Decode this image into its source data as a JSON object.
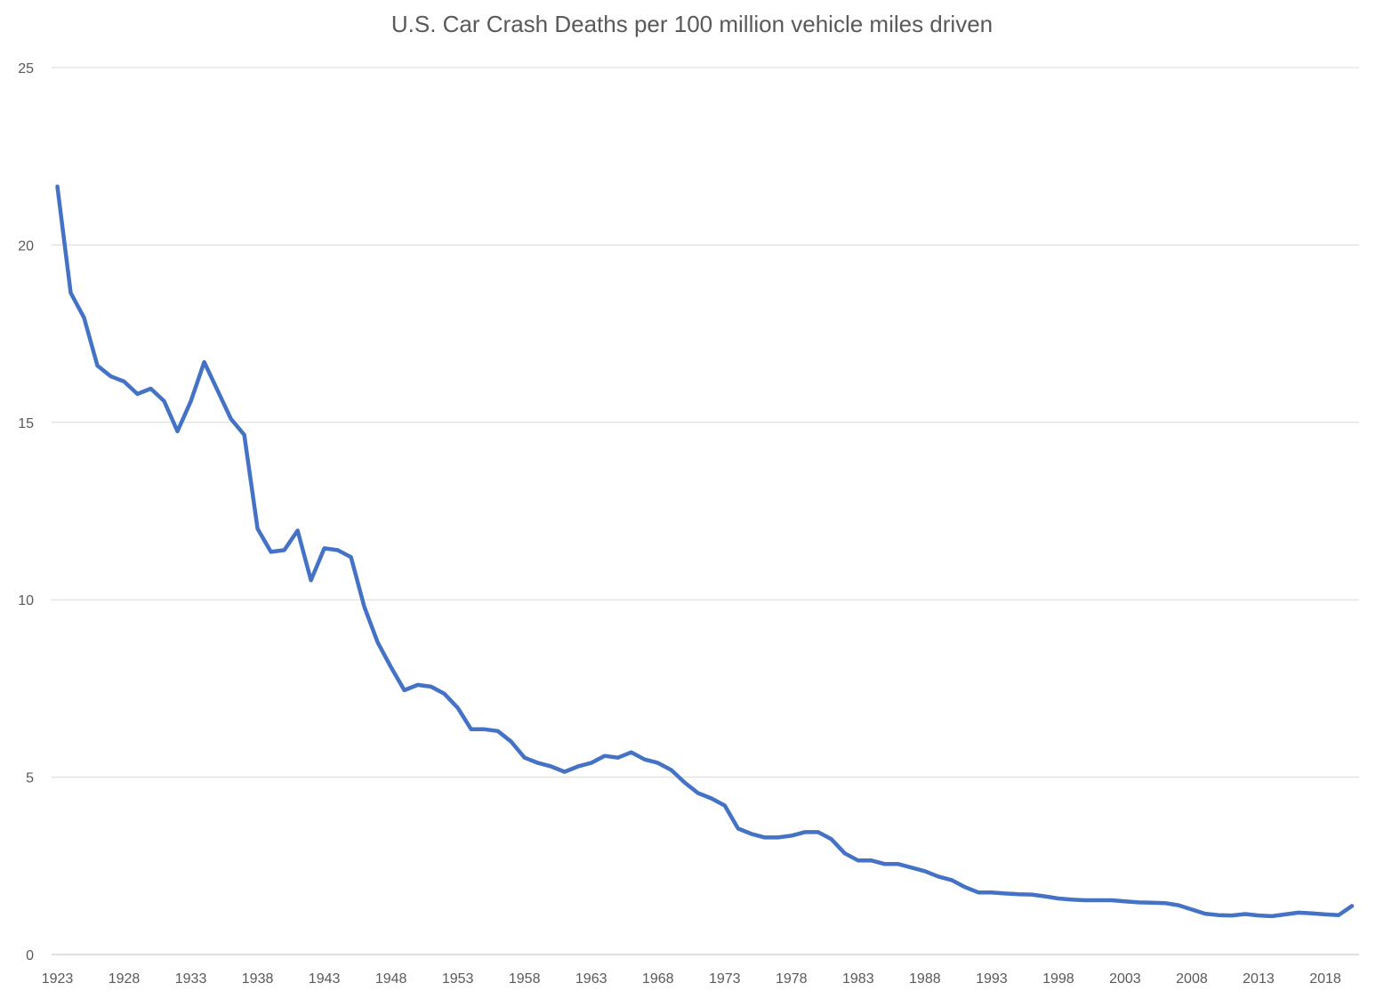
{
  "chart_data": {
    "type": "line",
    "title": "U.S. Car Crash Deaths per 100 million vehicle miles driven",
    "xlabel": "",
    "ylabel": "",
    "ylim": [
      0,
      25
    ],
    "yticks": [
      0,
      5,
      10,
      15,
      20,
      25
    ],
    "xlim": [
      1923,
      2020
    ],
    "xtick_labels": [
      "1923",
      "1928",
      "1933",
      "1938",
      "1943",
      "1948",
      "1953",
      "1958",
      "1963",
      "1968",
      "1973",
      "1978",
      "1983",
      "1988",
      "1993",
      "1998",
      "2003",
      "2008",
      "2013",
      "2018"
    ],
    "grid": "horizontal",
    "legend": "none",
    "color": "#4472C4",
    "series": [
      {
        "x": [
          1923,
          1924,
          1925,
          1926,
          1927,
          1928,
          1929,
          1930,
          1931,
          1932,
          1933,
          1934,
          1935,
          1936,
          1937,
          1938,
          1939,
          1940,
          1941,
          1942,
          1943,
          1944,
          1945,
          1946,
          1947,
          1948,
          1949,
          1950,
          1951,
          1952,
          1953,
          1954,
          1955,
          1956,
          1957,
          1958,
          1959,
          1960,
          1961,
          1962,
          1963,
          1964,
          1965,
          1966,
          1967,
          1968,
          1969,
          1970,
          1971,
          1972,
          1973,
          1974,
          1975,
          1976,
          1977,
          1978,
          1979,
          1980,
          1981,
          1982,
          1983,
          1984,
          1985,
          1986,
          1987,
          1988,
          1989,
          1990,
          1991,
          1992,
          1993,
          1994,
          1995,
          1996,
          1997,
          1998,
          1999,
          2000,
          2001,
          2002,
          2003,
          2004,
          2005,
          2006,
          2007,
          2008,
          2009,
          2010,
          2011,
          2012,
          2013,
          2014,
          2015,
          2016,
          2017,
          2018,
          2019,
          2020
        ],
        "values": [
          21.65,
          18.65,
          17.95,
          16.6,
          16.3,
          16.15,
          15.8,
          15.95,
          15.6,
          14.75,
          15.6,
          16.7,
          15.9,
          15.1,
          14.65,
          12.0,
          11.35,
          11.4,
          11.95,
          10.55,
          11.45,
          11.4,
          11.2,
          9.8,
          8.8,
          8.1,
          7.45,
          7.6,
          7.55,
          7.35,
          6.95,
          6.35,
          6.35,
          6.3,
          6.0,
          5.55,
          5.4,
          5.3,
          5.15,
          5.3,
          5.4,
          5.6,
          5.55,
          5.7,
          5.5,
          5.4,
          5.2,
          4.85,
          4.55,
          4.4,
          4.2,
          3.55,
          3.4,
          3.3,
          3.3,
          3.35,
          3.45,
          3.45,
          3.25,
          2.85,
          2.65,
          2.65,
          2.55,
          2.55,
          2.45,
          2.35,
          2.2,
          2.1,
          1.9,
          1.75,
          1.75,
          1.72,
          1.7,
          1.69,
          1.64,
          1.58,
          1.55,
          1.53,
          1.53,
          1.53,
          1.5,
          1.47,
          1.46,
          1.45,
          1.39,
          1.27,
          1.15,
          1.11,
          1.1,
          1.14,
          1.1,
          1.08,
          1.13,
          1.18,
          1.16,
          1.13,
          1.11,
          1.37
        ]
      }
    ]
  }
}
